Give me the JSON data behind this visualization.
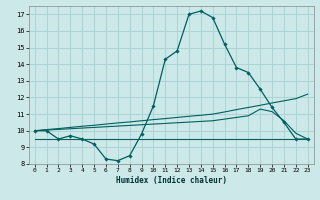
{
  "xlabel": "Humidex (Indice chaleur)",
  "bg_color": "#cce8e8",
  "grid_color": "#aad4d4",
  "line_color": "#005f5f",
  "x_data": [
    0,
    1,
    2,
    3,
    4,
    5,
    6,
    7,
    8,
    9,
    10,
    11,
    12,
    13,
    14,
    15,
    16,
    17,
    18,
    19,
    20,
    21,
    22,
    23
  ],
  "line1": [
    10.0,
    10.0,
    9.5,
    9.7,
    9.5,
    9.2,
    8.3,
    8.2,
    8.5,
    9.8,
    11.5,
    14.3,
    14.8,
    17.0,
    17.2,
    16.8,
    15.2,
    13.8,
    13.5,
    12.5,
    11.4,
    10.5,
    9.5,
    9.5
  ],
  "line2": [
    10.0,
    10.07,
    10.13,
    10.2,
    10.27,
    10.33,
    10.4,
    10.47,
    10.53,
    10.6,
    10.67,
    10.73,
    10.8,
    10.87,
    10.93,
    11.0,
    11.13,
    11.27,
    11.4,
    11.53,
    11.67,
    11.8,
    11.93,
    12.2
  ],
  "line3": [
    10.0,
    10.04,
    10.08,
    10.12,
    10.16,
    10.2,
    10.24,
    10.28,
    10.32,
    10.36,
    10.4,
    10.44,
    10.48,
    10.52,
    10.56,
    10.6,
    10.7,
    10.8,
    10.9,
    11.3,
    11.15,
    10.6,
    9.85,
    9.5
  ],
  "line4": [
    9.5,
    9.5,
    9.5,
    9.5,
    9.5,
    9.5,
    9.5,
    9.5,
    9.5,
    9.5,
    9.5,
    9.5,
    9.5,
    9.5,
    9.5,
    9.5,
    9.5,
    9.5,
    9.5,
    9.5,
    9.5,
    9.5,
    9.5,
    9.5
  ],
  "ylim": [
    8,
    17.5
  ],
  "xlim": [
    -0.5,
    23.5
  ],
  "yticks": [
    8,
    9,
    10,
    11,
    12,
    13,
    14,
    15,
    16,
    17
  ],
  "xticks": [
    0,
    1,
    2,
    3,
    4,
    5,
    6,
    7,
    8,
    9,
    10,
    11,
    12,
    13,
    14,
    15,
    16,
    17,
    18,
    19,
    20,
    21,
    22,
    23
  ]
}
